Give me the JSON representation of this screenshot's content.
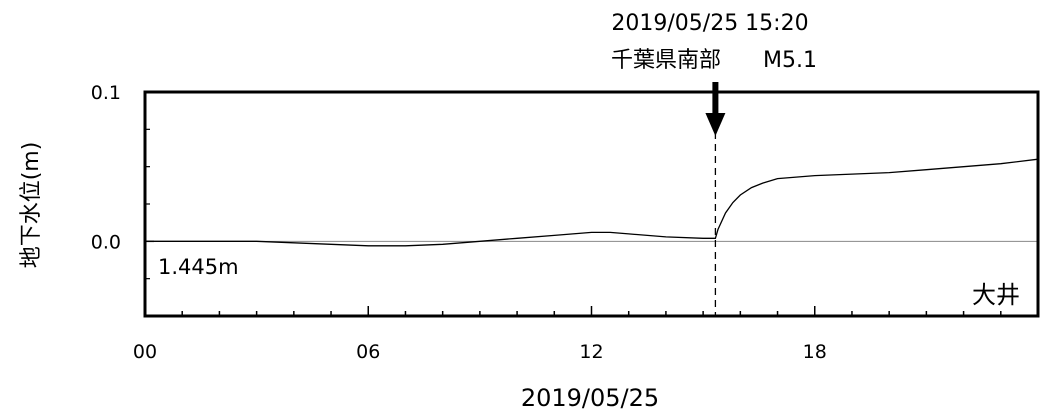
{
  "chart_data": {
    "type": "line",
    "ylabel": "地下水位(m)",
    "xlabel": "2019/05/25",
    "station": "大井",
    "baseline_label": "1.445m",
    "xlim": [
      0,
      24
    ],
    "ylim": [
      -0.05,
      0.1
    ],
    "x_ticks": [
      0,
      6,
      12,
      18
    ],
    "x_tick_labels": [
      "00",
      "06",
      "12",
      "18"
    ],
    "y_ticks": [
      0.1,
      0.0
    ],
    "y_tick_labels": [
      "0.1",
      "0.0"
    ],
    "event": {
      "time_label": "2019/05/25 15:20",
      "name": "千葉県南部",
      "magnitude": "M5.1",
      "x": 15.33
    },
    "series": [
      {
        "x": [
          0,
          3,
          4,
          5,
          6,
          7,
          8,
          9,
          10,
          11,
          12,
          12.5,
          13,
          14,
          15,
          15.33,
          15.4,
          15.6,
          15.8,
          16,
          16.3,
          16.6,
          17,
          17.5,
          18,
          19,
          20,
          21,
          22,
          23,
          24
        ],
        "y": [
          0.0,
          0.0,
          -0.001,
          -0.002,
          -0.003,
          -0.003,
          -0.002,
          0.0,
          0.002,
          0.004,
          0.006,
          0.006,
          0.005,
          0.003,
          0.002,
          0.002,
          0.008,
          0.019,
          0.026,
          0.031,
          0.036,
          0.039,
          0.042,
          0.043,
          0.044,
          0.045,
          0.046,
          0.048,
          0.05,
          0.052,
          0.055
        ]
      }
    ]
  }
}
